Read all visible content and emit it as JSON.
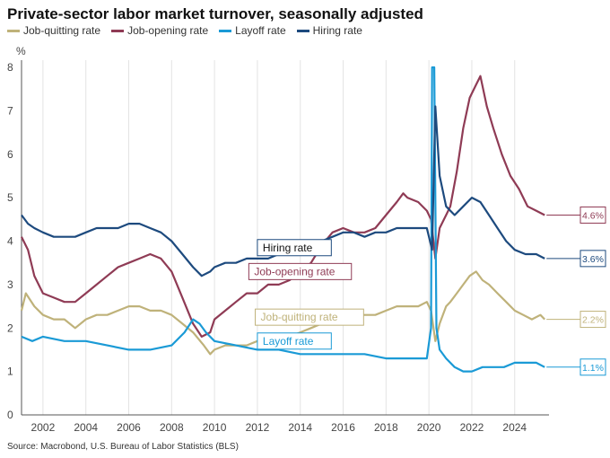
{
  "chart_data": {
    "type": "line",
    "title": "Private-sector labor market turnover, seasonally adjusted",
    "ylabel": "%",
    "xlabel": "",
    "xlim": [
      2001,
      2025.6
    ],
    "ylim": [
      0,
      8
    ],
    "x_ticks": [
      "2002",
      "2004",
      "2006",
      "2008",
      "2010",
      "2012",
      "2014",
      "2016",
      "2018",
      "2020",
      "2022",
      "2024"
    ],
    "y_ticks": [
      "0",
      "1",
      "2",
      "3",
      "4",
      "5",
      "6",
      "7",
      "8"
    ],
    "grid": "vertical",
    "legend_position": "top-left",
    "series": [
      {
        "name": "Job-quitting rate",
        "color": "#bfb27a",
        "end_label": "2.2%",
        "annotation": "Job-quitting rate",
        "points": [
          [
            2001.0,
            2.4
          ],
          [
            2001.2,
            2.8
          ],
          [
            2001.6,
            2.5
          ],
          [
            2002.0,
            2.3
          ],
          [
            2002.5,
            2.2
          ],
          [
            2003.0,
            2.2
          ],
          [
            2003.5,
            2.0
          ],
          [
            2004.0,
            2.2
          ],
          [
            2004.5,
            2.3
          ],
          [
            2005.0,
            2.3
          ],
          [
            2005.5,
            2.4
          ],
          [
            2006.0,
            2.5
          ],
          [
            2006.5,
            2.5
          ],
          [
            2007.0,
            2.4
          ],
          [
            2007.5,
            2.4
          ],
          [
            2008.0,
            2.3
          ],
          [
            2008.5,
            2.1
          ],
          [
            2009.0,
            1.9
          ],
          [
            2009.5,
            1.6
          ],
          [
            2009.8,
            1.4
          ],
          [
            2010.0,
            1.5
          ],
          [
            2010.5,
            1.6
          ],
          [
            2011.0,
            1.6
          ],
          [
            2011.5,
            1.6
          ],
          [
            2012.0,
            1.7
          ],
          [
            2012.5,
            1.7
          ],
          [
            2013.0,
            1.8
          ],
          [
            2013.5,
            1.8
          ],
          [
            2014.0,
            1.9
          ],
          [
            2014.5,
            2.0
          ],
          [
            2015.0,
            2.1
          ],
          [
            2015.5,
            2.1
          ],
          [
            2016.0,
            2.2
          ],
          [
            2016.5,
            2.3
          ],
          [
            2017.0,
            2.3
          ],
          [
            2017.5,
            2.3
          ],
          [
            2018.0,
            2.4
          ],
          [
            2018.5,
            2.5
          ],
          [
            2019.0,
            2.5
          ],
          [
            2019.5,
            2.5
          ],
          [
            2019.9,
            2.6
          ],
          [
            2020.1,
            2.4
          ],
          [
            2020.3,
            1.7
          ],
          [
            2020.5,
            2.1
          ],
          [
            2020.8,
            2.5
          ],
          [
            2021.0,
            2.6
          ],
          [
            2021.3,
            2.8
          ],
          [
            2021.6,
            3.0
          ],
          [
            2021.9,
            3.2
          ],
          [
            2022.2,
            3.3
          ],
          [
            2022.5,
            3.1
          ],
          [
            2022.8,
            3.0
          ],
          [
            2023.2,
            2.8
          ],
          [
            2023.6,
            2.6
          ],
          [
            2024.0,
            2.4
          ],
          [
            2024.4,
            2.3
          ],
          [
            2024.8,
            2.2
          ],
          [
            2025.2,
            2.3
          ],
          [
            2025.4,
            2.2
          ]
        ]
      },
      {
        "name": "Job-opening rate",
        "color": "#8f3b55",
        "end_label": "4.6%",
        "annotation": "Job-opening rate",
        "points": [
          [
            2001.0,
            4.1
          ],
          [
            2001.3,
            3.8
          ],
          [
            2001.6,
            3.2
          ],
          [
            2002.0,
            2.8
          ],
          [
            2002.5,
            2.7
          ],
          [
            2003.0,
            2.6
          ],
          [
            2003.5,
            2.6
          ],
          [
            2004.0,
            2.8
          ],
          [
            2004.5,
            3.0
          ],
          [
            2005.0,
            3.2
          ],
          [
            2005.5,
            3.4
          ],
          [
            2006.0,
            3.5
          ],
          [
            2006.5,
            3.6
          ],
          [
            2007.0,
            3.7
          ],
          [
            2007.5,
            3.6
          ],
          [
            2008.0,
            3.3
          ],
          [
            2008.5,
            2.7
          ],
          [
            2009.0,
            2.1
          ],
          [
            2009.4,
            1.8
          ],
          [
            2009.8,
            1.9
          ],
          [
            2010.0,
            2.2
          ],
          [
            2010.5,
            2.4
          ],
          [
            2011.0,
            2.6
          ],
          [
            2011.5,
            2.8
          ],
          [
            2012.0,
            2.8
          ],
          [
            2012.5,
            3.0
          ],
          [
            2013.0,
            3.0
          ],
          [
            2013.5,
            3.1
          ],
          [
            2014.0,
            3.3
          ],
          [
            2014.5,
            3.5
          ],
          [
            2015.0,
            3.9
          ],
          [
            2015.5,
            4.2
          ],
          [
            2016.0,
            4.3
          ],
          [
            2016.5,
            4.2
          ],
          [
            2017.0,
            4.2
          ],
          [
            2017.5,
            4.3
          ],
          [
            2018.0,
            4.6
          ],
          [
            2018.5,
            4.9
          ],
          [
            2018.8,
            5.1
          ],
          [
            2019.0,
            5.0
          ],
          [
            2019.5,
            4.9
          ],
          [
            2019.9,
            4.7
          ],
          [
            2020.1,
            4.5
          ],
          [
            2020.3,
            3.6
          ],
          [
            2020.5,
            4.3
          ],
          [
            2020.8,
            4.6
          ],
          [
            2021.0,
            4.8
          ],
          [
            2021.3,
            5.6
          ],
          [
            2021.6,
            6.6
          ],
          [
            2021.9,
            7.3
          ],
          [
            2022.2,
            7.6
          ],
          [
            2022.4,
            7.8
          ],
          [
            2022.7,
            7.1
          ],
          [
            2023.0,
            6.6
          ],
          [
            2023.4,
            6.0
          ],
          [
            2023.8,
            5.5
          ],
          [
            2024.2,
            5.2
          ],
          [
            2024.6,
            4.8
          ],
          [
            2025.0,
            4.7
          ],
          [
            2025.4,
            4.6
          ]
        ]
      },
      {
        "name": "Layoff rate",
        "color": "#1a9ad6",
        "end_label": "1.1%",
        "annotation": "Layoff rate",
        "points": [
          [
            2001.0,
            1.8
          ],
          [
            2001.5,
            1.7
          ],
          [
            2002.0,
            1.8
          ],
          [
            2003.0,
            1.7
          ],
          [
            2004.0,
            1.7
          ],
          [
            2005.0,
            1.6
          ],
          [
            2006.0,
            1.5
          ],
          [
            2007.0,
            1.5
          ],
          [
            2008.0,
            1.6
          ],
          [
            2008.6,
            1.9
          ],
          [
            2009.0,
            2.2
          ],
          [
            2009.3,
            2.1
          ],
          [
            2009.6,
            1.9
          ],
          [
            2010.0,
            1.7
          ],
          [
            2011.0,
            1.6
          ],
          [
            2012.0,
            1.5
          ],
          [
            2013.0,
            1.5
          ],
          [
            2014.0,
            1.4
          ],
          [
            2015.0,
            1.4
          ],
          [
            2016.0,
            1.4
          ],
          [
            2017.0,
            1.4
          ],
          [
            2018.0,
            1.3
          ],
          [
            2019.0,
            1.3
          ],
          [
            2019.9,
            1.3
          ],
          [
            2020.1,
            2.0
          ],
          [
            2020.15,
            8.0
          ],
          [
            2020.25,
            8.0
          ],
          [
            2020.35,
            2.0
          ],
          [
            2020.5,
            1.5
          ],
          [
            2020.8,
            1.3
          ],
          [
            2021.2,
            1.1
          ],
          [
            2021.6,
            1.0
          ],
          [
            2022.0,
            1.0
          ],
          [
            2022.5,
            1.1
          ],
          [
            2023.0,
            1.1
          ],
          [
            2023.5,
            1.1
          ],
          [
            2024.0,
            1.2
          ],
          [
            2024.5,
            1.2
          ],
          [
            2025.0,
            1.2
          ],
          [
            2025.4,
            1.1
          ]
        ]
      },
      {
        "name": "Hiring rate",
        "color": "#1d4a7e",
        "end_label": "3.6%",
        "annotation": "Hiring rate",
        "points": [
          [
            2001.0,
            4.6
          ],
          [
            2001.3,
            4.4
          ],
          [
            2001.6,
            4.3
          ],
          [
            2002.0,
            4.2
          ],
          [
            2002.5,
            4.1
          ],
          [
            2003.0,
            4.1
          ],
          [
            2003.5,
            4.1
          ],
          [
            2004.0,
            4.2
          ],
          [
            2004.5,
            4.3
          ],
          [
            2005.0,
            4.3
          ],
          [
            2005.5,
            4.3
          ],
          [
            2006.0,
            4.4
          ],
          [
            2006.5,
            4.4
          ],
          [
            2007.0,
            4.3
          ],
          [
            2007.5,
            4.2
          ],
          [
            2008.0,
            4.0
          ],
          [
            2008.5,
            3.7
          ],
          [
            2009.0,
            3.4
          ],
          [
            2009.4,
            3.2
          ],
          [
            2009.8,
            3.3
          ],
          [
            2010.0,
            3.4
          ],
          [
            2010.5,
            3.5
          ],
          [
            2011.0,
            3.5
          ],
          [
            2011.5,
            3.6
          ],
          [
            2012.0,
            3.6
          ],
          [
            2012.5,
            3.6
          ],
          [
            2013.0,
            3.7
          ],
          [
            2013.5,
            3.7
          ],
          [
            2014.0,
            3.8
          ],
          [
            2014.5,
            3.9
          ],
          [
            2015.0,
            4.0
          ],
          [
            2015.5,
            4.1
          ],
          [
            2016.0,
            4.2
          ],
          [
            2016.5,
            4.2
          ],
          [
            2017.0,
            4.1
          ],
          [
            2017.5,
            4.2
          ],
          [
            2018.0,
            4.2
          ],
          [
            2018.5,
            4.3
          ],
          [
            2019.0,
            4.3
          ],
          [
            2019.5,
            4.3
          ],
          [
            2019.9,
            4.3
          ],
          [
            2020.15,
            3.8
          ],
          [
            2020.3,
            7.1
          ],
          [
            2020.5,
            5.5
          ],
          [
            2020.8,
            4.8
          ],
          [
            2021.2,
            4.6
          ],
          [
            2021.6,
            4.8
          ],
          [
            2022.0,
            5.0
          ],
          [
            2022.4,
            4.9
          ],
          [
            2022.8,
            4.6
          ],
          [
            2023.2,
            4.3
          ],
          [
            2023.6,
            4.0
          ],
          [
            2024.0,
            3.8
          ],
          [
            2024.5,
            3.7
          ],
          [
            2025.0,
            3.7
          ],
          [
            2025.4,
            3.6
          ]
        ]
      }
    ]
  },
  "source": "Source: Macrobond, U.S. Bureau of Labor Statistics (BLS)"
}
